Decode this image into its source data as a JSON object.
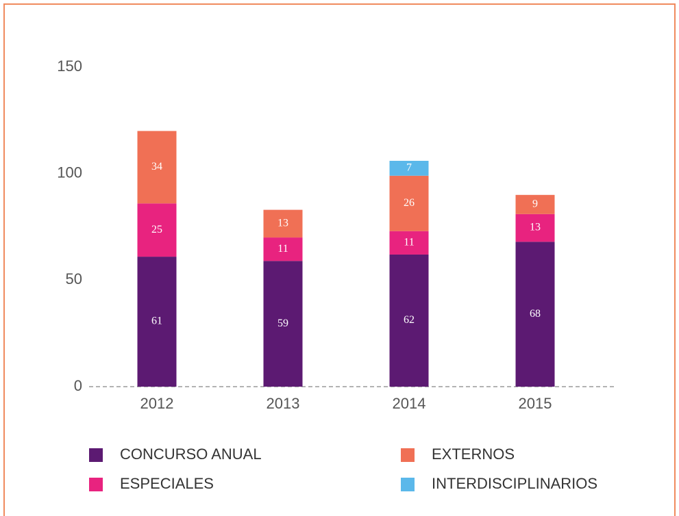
{
  "chart_data": {
    "type": "stacked_bar",
    "categories": [
      "2012",
      "2013",
      "2014",
      "2015"
    ],
    "series": [
      {
        "name": "CONCURSO ANUAL",
        "color": "#5c1a72",
        "values": [
          61,
          59,
          62,
          68
        ]
      },
      {
        "name": "ESPECIALES",
        "color": "#e8237f",
        "values": [
          25,
          11,
          11,
          13
        ]
      },
      {
        "name": "EXTERNOS",
        "color": "#f07055",
        "values": [
          34,
          13,
          26,
          9
        ]
      },
      {
        "name": "INTERDISCIPLINARIOS",
        "color": "#5bb8ea",
        "values": [
          null,
          null,
          7,
          null
        ]
      }
    ],
    "ylim": [
      0,
      150
    ],
    "yticks": [
      0,
      50,
      100,
      150
    ]
  }
}
